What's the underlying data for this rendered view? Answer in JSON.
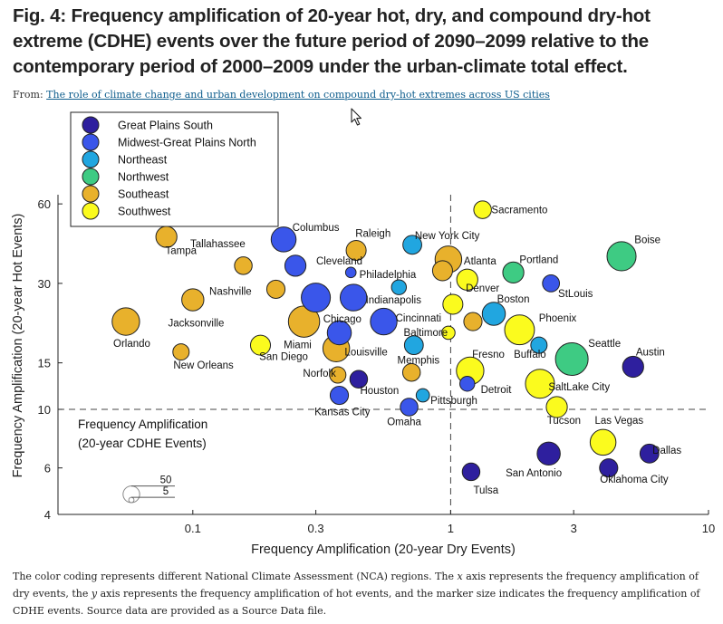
{
  "figure": {
    "title": "Fig. 4: Frequency amplification of 20-year hot, dry, and compound dry-hot extreme (CDHE) events over the future period of 2090–2099 relative to the contemporary period of 2000–2009 under the urban-climate total effect.",
    "from_label": "From:",
    "from_link": "The role of climate change and urban development on compound dry-hot extremes across US cities",
    "caption_parts": [
      "The color coding represents different National Climate Assessment (NCA) regions. The ",
      "x",
      " axis represents the frequency amplification of dry events, the ",
      "y",
      " axis represents the frequency amplification of hot events, and the marker size indicates the frequency amplification of CDHE events. Source data are provided as a Source Data file."
    ]
  },
  "chart_data": {
    "type": "scatter",
    "xlabel": "Frequency Amplification (20-year Dry Events)",
    "ylabel": "Frequency Amplification (20-year Hot Events)",
    "x_scale": "log",
    "y_scale": "log",
    "xlim": [
      0.03,
      10
    ],
    "ylim": [
      4,
      65
    ],
    "x_ticks": [
      0.1,
      0.3,
      1,
      3,
      10
    ],
    "x_tick_labels": [
      "0.1",
      "0.3",
      "1",
      "3",
      "10"
    ],
    "y_ticks": [
      4,
      6,
      10,
      15,
      30,
      60
    ],
    "y_tick_labels": [
      "4",
      "6",
      "10",
      "15",
      "30",
      "60"
    ],
    "reference_lines": {
      "x": 1,
      "y": 10,
      "style": "dashed"
    },
    "size_legend": {
      "title_lines": [
        "Frequency Amplification",
        "(20-year CDHE Events)"
      ],
      "values": [
        50,
        5
      ]
    },
    "legend_position": "top-left",
    "regions": [
      {
        "name": "Great Plains South",
        "color": "#2e1f9e"
      },
      {
        "name": "Midwest-Great Plains North",
        "color": "#3a56ea"
      },
      {
        "name": "Northeast",
        "color": "#21a6e0"
      },
      {
        "name": "Northwest",
        "color": "#3ecb83"
      },
      {
        "name": "Southeast",
        "color": "#e8b12c"
      },
      {
        "name": "Southwest",
        "color": "#fbfb1e"
      }
    ],
    "points": [
      {
        "city": "Tampa",
        "region": "Southeast",
        "x": 0.079,
        "y": 45,
        "size": 20
      },
      {
        "city": "Tallahassee",
        "region": "Southeast",
        "x": 0.157,
        "y": 35,
        "size": 14
      },
      {
        "city": "Columbus",
        "region": "Midwest-Great Plains North",
        "x": 0.225,
        "y": 44,
        "size": 28
      },
      {
        "city": "Raleigh",
        "region": "Southeast",
        "x": 0.43,
        "y": 40,
        "size": 18
      },
      {
        "city": "New York City",
        "region": "Northeast",
        "x": 0.71,
        "y": 42,
        "size": 16
      },
      {
        "city": "Sacramento",
        "region": "Southwest",
        "x": 1.33,
        "y": 57,
        "size": 14
      },
      {
        "city": "Cleveland",
        "region": "Midwest-Great Plains North",
        "x": 0.25,
        "y": 35,
        "size": 20
      },
      {
        "city": "Philadelphia",
        "region": "Midwest-Great Plains North",
        "x": 0.41,
        "y": 33,
        "size": 5
      },
      {
        "city": "Atlanta",
        "region": "Southeast",
        "x": 0.98,
        "y": 37,
        "size": 32
      },
      {
        "city": "Atlanta (2)",
        "region": "Southeast",
        "x": 0.93,
        "y": 33.5,
        "size": 18
      },
      {
        "city": "Portland",
        "region": "Northwest",
        "x": 1.75,
        "y": 33,
        "size": 20
      },
      {
        "city": "Boise",
        "region": "Northwest",
        "x": 4.6,
        "y": 38,
        "size": 38
      },
      {
        "city": "Nashville",
        "region": "Southeast",
        "x": 0.21,
        "y": 28.5,
        "size": 15
      },
      {
        "city": "Jacksonville",
        "region": "Southeast",
        "x": 0.1,
        "y": 26,
        "size": 22
      },
      {
        "city": "Orlando",
        "region": "Southeast",
        "x": 0.055,
        "y": 21.5,
        "size": 34
      },
      {
        "city": "Chicago",
        "region": "Midwest-Great Plains North",
        "x": 0.3,
        "y": 26.5,
        "size": 38
      },
      {
        "city": "Chicago (2)",
        "region": "Southeast",
        "x": 0.27,
        "y": 21.5,
        "size": 44
      },
      {
        "city": "Indianapolis",
        "region": "Midwest-Great Plains North",
        "x": 0.42,
        "y": 26.5,
        "size": 32
      },
      {
        "city": "Philadelphia (2)",
        "region": "Northeast",
        "x": 0.63,
        "y": 29,
        "size": 10
      },
      {
        "city": "Denver",
        "region": "Southwest",
        "x": 1.16,
        "y": 31,
        "size": 20
      },
      {
        "city": "St Louis",
        "region": "Midwest-Great Plains North",
        "x": 2.45,
        "y": 30,
        "size": 13
      },
      {
        "city": "Boston",
        "region": "Northeast",
        "x": 1.47,
        "y": 23,
        "size": 24
      },
      {
        "city": "Cincinnati",
        "region": "Midwest-Great Plains North",
        "x": 0.55,
        "y": 21.5,
        "size": 32
      },
      {
        "city": "Denver (2)",
        "region": "Southwest",
        "x": 1.02,
        "y": 25,
        "size": 18
      },
      {
        "city": "Cincinnati (2)",
        "region": "Southeast",
        "x": 1.22,
        "y": 21.5,
        "size": 15
      },
      {
        "city": "Phoenix",
        "region": "Southwest",
        "x": 1.85,
        "y": 20,
        "size": 40
      },
      {
        "city": "Baltimore",
        "region": "Southwest",
        "x": 0.98,
        "y": 19.5,
        "size": 8
      },
      {
        "city": "Miami",
        "region": "Southwest",
        "x": 0.183,
        "y": 17.5,
        "size": 18
      },
      {
        "city": "New Orleans",
        "region": "Southeast",
        "x": 0.09,
        "y": 16.5,
        "size": 12
      },
      {
        "city": "Louisville",
        "region": "Midwest-Great Plains North",
        "x": 0.37,
        "y": 19.5,
        "size": 26
      },
      {
        "city": "Louisville (2)",
        "region": "Southeast",
        "x": 0.36,
        "y": 17,
        "size": 32
      },
      {
        "city": "Memphis",
        "region": "Northeast",
        "x": 0.72,
        "y": 17.5,
        "size": 16
      },
      {
        "city": "Buffalo",
        "region": "Northeast",
        "x": 2.2,
        "y": 17.5,
        "size": 12
      },
      {
        "city": "Seattle",
        "region": "Northwest",
        "x": 2.95,
        "y": 15.5,
        "size": 48
      },
      {
        "city": "Austin",
        "region": "Great Plains South",
        "x": 5.1,
        "y": 14.5,
        "size": 20
      },
      {
        "city": "Norfolk",
        "region": "Southeast",
        "x": 0.365,
        "y": 13.5,
        "size": 12
      },
      {
        "city": "Norfolk (2)",
        "region": "Great Plains South",
        "x": 0.44,
        "y": 13,
        "size": 14
      },
      {
        "city": "Memphis (2)",
        "region": "Southeast",
        "x": 0.705,
        "y": 13.8,
        "size": 14
      },
      {
        "city": "Fresno",
        "region": "Southwest",
        "x": 1.19,
        "y": 14,
        "size": 34
      },
      {
        "city": "Detroit",
        "region": "Midwest-Great Plains North",
        "x": 1.16,
        "y": 12.5,
        "size": 10
      },
      {
        "city": "Salt Lake City",
        "region": "Southwest",
        "x": 2.22,
        "y": 12.5,
        "size": 38
      },
      {
        "city": "Kansas City",
        "region": "Midwest-Great Plains North",
        "x": 0.37,
        "y": 11.3,
        "size": 15
      },
      {
        "city": "Pittsburgh",
        "region": "Northeast",
        "x": 0.78,
        "y": 11.3,
        "size": 8
      },
      {
        "city": "Omaha",
        "region": "Midwest-Great Plains North",
        "x": 0.69,
        "y": 10.2,
        "size": 14
      },
      {
        "city": "Tucson",
        "region": "Southwest",
        "x": 2.58,
        "y": 10.2,
        "size": 20
      },
      {
        "city": "Las Vegas",
        "region": "Southwest",
        "x": 3.9,
        "y": 7.5,
        "size": 30
      },
      {
        "city": "Dallas",
        "region": "Great Plains South",
        "x": 5.9,
        "y": 6.8,
        "size": 16
      },
      {
        "city": "San Antonio",
        "region": "Great Plains South",
        "x": 2.4,
        "y": 6.8,
        "size": 24
      },
      {
        "city": "Oklahoma City",
        "region": "Great Plains South",
        "x": 4.1,
        "y": 6.0,
        "size": 15
      },
      {
        "city": "Tulsa",
        "region": "Great Plains South",
        "x": 1.2,
        "y": 5.8,
        "size": 14
      }
    ],
    "labels": [
      {
        "text": "Tampa",
        "x": 0.09,
        "y": 40
      },
      {
        "text": "Tallahassee",
        "x": 0.125,
        "y": 42.5
      },
      {
        "text": "Columbus",
        "x": 0.3,
        "y": 49
      },
      {
        "text": "Raleigh",
        "x": 0.5,
        "y": 46.5
      },
      {
        "text": "New York City",
        "x": 0.97,
        "y": 45.5
      },
      {
        "text": "Sacramento",
        "x": 1.85,
        "y": 57
      },
      {
        "text": "Cleveland",
        "x": 0.37,
        "y": 36.5
      },
      {
        "text": "Philadelphia",
        "x": 0.57,
        "y": 32.5
      },
      {
        "text": "Atlanta",
        "x": 1.3,
        "y": 36.5
      },
      {
        "text": "Portland",
        "x": 2.2,
        "y": 37
      },
      {
        "text": "Boise",
        "x": 5.8,
        "y": 44
      },
      {
        "text": "Nashville",
        "x": 0.14,
        "y": 28
      },
      {
        "text": "Jacksonville",
        "x": 0.103,
        "y": 21.3
      },
      {
        "text": "Orlando",
        "x": 0.058,
        "y": 17.8
      },
      {
        "text": "Chicago",
        "x": 0.38,
        "y": 22
      },
      {
        "text": "Indianapolis",
        "x": 0.6,
        "y": 26
      },
      {
        "text": "Denver",
        "x": 1.33,
        "y": 28.8
      },
      {
        "text": "Boston",
        "x": 1.75,
        "y": 26.2
      },
      {
        "text": "StLouis",
        "x": 3.05,
        "y": 27.5
      },
      {
        "text": "Cincinnati",
        "x": 0.75,
        "y": 22.2
      },
      {
        "text": "Phoenix",
        "x": 2.6,
        "y": 22.2
      },
      {
        "text": "Baltimore",
        "x": 0.8,
        "y": 19.6
      },
      {
        "text": "Miami",
        "x": 0.255,
        "y": 17.6
      },
      {
        "text": "San Diego",
        "x": 0.225,
        "y": 15.9
      },
      {
        "text": "New Orleans",
        "x": 0.11,
        "y": 14.7
      },
      {
        "text": "Louisville",
        "x": 0.47,
        "y": 16.5
      },
      {
        "text": "Memphis",
        "x": 0.75,
        "y": 15.4
      },
      {
        "text": "Fresno",
        "x": 1.4,
        "y": 16.2
      },
      {
        "text": "Buffalo",
        "x": 2.03,
        "y": 16.2
      },
      {
        "text": "Seattle",
        "x": 3.95,
        "y": 17.8
      },
      {
        "text": "Austin",
        "x": 5.95,
        "y": 16.5
      },
      {
        "text": "Norfolk",
        "x": 0.31,
        "y": 13.7
      },
      {
        "text": "Houston",
        "x": 0.53,
        "y": 11.8
      },
      {
        "text": "Detroit",
        "x": 1.5,
        "y": 11.9
      },
      {
        "text": "SaltLake City",
        "x": 3.15,
        "y": 12.2
      },
      {
        "text": "Pittsburgh",
        "x": 1.03,
        "y": 10.8
      },
      {
        "text": "Kansas City",
        "x": 0.38,
        "y": 9.8
      },
      {
        "text": "Omaha",
        "x": 0.66,
        "y": 9.0
      },
      {
        "text": "Tucson",
        "x": 2.75,
        "y": 9.1
      },
      {
        "text": "Las Vegas",
        "x": 4.5,
        "y": 9.1
      },
      {
        "text": "Dallas",
        "x": 6.9,
        "y": 7.0
      },
      {
        "text": "San Antonio",
        "x": 2.1,
        "y": 5.75
      },
      {
        "text": "Oklahoma City",
        "x": 5.15,
        "y": 5.45
      },
      {
        "text": "Tulsa",
        "x": 1.37,
        "y": 4.95
      }
    ]
  }
}
